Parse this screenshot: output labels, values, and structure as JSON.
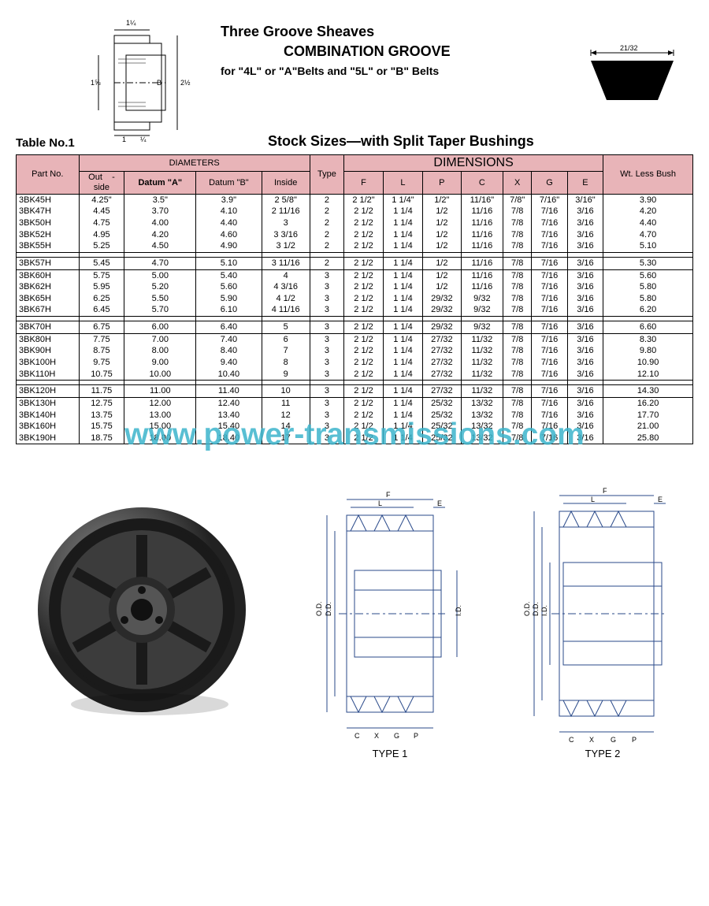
{
  "header": {
    "title1": "Three Groove Sheaves",
    "title2": "COMBINATION GROOVE",
    "title3": "for \"4L\" or \"A\"Belts and \"5L\" or \"B\" Belts",
    "belt_dim": "21/32",
    "top_dims": {
      "w": "1¼",
      "h": "1⅝",
      "b": "B",
      "r": "2½",
      "b1": "1",
      "b2": "¼"
    },
    "table_no": "Table No.1",
    "stock_title": "Stock Sizes—with Split Taper Bushings"
  },
  "table": {
    "header_groups": {
      "part": "Part No.",
      "diameters": "DIAMETERS",
      "type": "Type",
      "dimensions": "DIMENSIONS",
      "wt": "Wt. Less Bush"
    },
    "sub_headers": {
      "out": "Out    -\nside",
      "da": "Datum \"A\"",
      "db": "Datum \"B\"",
      "inside": "Inside",
      "f": "F",
      "l": "L",
      "p": "P",
      "c": "C",
      "x": "X",
      "g": "G",
      "e": "E"
    },
    "groups": [
      [
        [
          "3BK45H",
          "4.25\"",
          "3.5\"",
          "3.9\"",
          "2 5/8\"",
          "2",
          "2 1/2\"",
          "1 1/4\"",
          "1/2\"",
          "11/16\"",
          "7/8\"",
          "7/16\"",
          "3/16\"",
          "3.90"
        ],
        [
          "3BK47H",
          "4.45",
          "3.70",
          "4.10",
          "2 11/16",
          "2",
          "2 1/2",
          "1 1/4",
          "1/2",
          "11/16",
          "7/8",
          "7/16",
          "3/16",
          "4.20"
        ],
        [
          "3BK50H",
          "4.75",
          "4.00",
          "4.40",
          "3",
          "2",
          "2 1/2",
          "1 1/4",
          "1/2",
          "11/16",
          "7/8",
          "7/16",
          "3/16",
          "4.40"
        ],
        [
          "3BK52H",
          "4.95",
          "4.20",
          "4.60",
          "3 3/16",
          "2",
          "2 1/2",
          "1 1/4",
          "1/2",
          "11/16",
          "7/8",
          "7/16",
          "3/16",
          "4.70"
        ],
        [
          "3BK55H",
          "5.25",
          "4.50",
          "4.90",
          "3 1/2",
          "2",
          "2 1/2",
          "1 1/4",
          "1/2",
          "11/16",
          "7/8",
          "7/16",
          "3/16",
          "5.10"
        ]
      ],
      [
        [
          "3BK57H",
          "5.45",
          "4.70",
          "5.10",
          "3 11/16",
          "2",
          "2 1/2",
          "1 1/4",
          "1/2",
          "11/16",
          "7/8",
          "7/16",
          "3/16",
          "5.30"
        ],
        [
          "3BK60H",
          "5.75",
          "5.00",
          "5.40",
          "4",
          "3",
          "2 1/2",
          "1 1/4",
          "1/2",
          "11/16",
          "7/8",
          "7/16",
          "3/16",
          "5.60"
        ],
        [
          "3BK62H",
          "5.95",
          "5.20",
          "5.60",
          "4 3/16",
          "3",
          "2 1/2",
          "1 1/4",
          "1/2",
          "11/16",
          "7/8",
          "7/16",
          "3/16",
          "5.80"
        ],
        [
          "3BK65H",
          "6.25",
          "5.50",
          "5.90",
          "4 1/2",
          "3",
          "2 1/2",
          "1 1/4",
          "29/32",
          "9/32",
          "7/8",
          "7/16",
          "3/16",
          "5.80"
        ],
        [
          "3BK67H",
          "6.45",
          "5.70",
          "6.10",
          "4 11/16",
          "3",
          "2 1/2",
          "1 1/4",
          "29/32",
          "9/32",
          "7/8",
          "7/16",
          "3/16",
          "6.20"
        ]
      ],
      [
        [
          "3BK70H",
          "6.75",
          "6.00",
          "6.40",
          "5",
          "3",
          "2 1/2",
          "1 1/4",
          "29/32",
          "9/32",
          "7/8",
          "7/16",
          "3/16",
          "6.60"
        ],
        [
          "3BK80H",
          "7.75",
          "7.00",
          "7.40",
          "6",
          "3",
          "2 1/2",
          "1 1/4",
          "27/32",
          "11/32",
          "7/8",
          "7/16",
          "3/16",
          "8.30"
        ],
        [
          "3BK90H",
          "8.75",
          "8.00",
          "8.40",
          "7",
          "3",
          "2 1/2",
          "1 1/4",
          "27/32",
          "11/32",
          "7/8",
          "7/16",
          "3/16",
          "9.80"
        ],
        [
          "3BK100H",
          "9.75",
          "9.00",
          "9.40",
          "8",
          "3",
          "2 1/2",
          "1 1/4",
          "27/32",
          "11/32",
          "7/8",
          "7/16",
          "3/16",
          "10.90"
        ],
        [
          "3BK110H",
          "10.75",
          "10.00",
          "10.40",
          "9",
          "3",
          "2 1/2",
          "1 1/4",
          "27/32",
          "11/32",
          "7/8",
          "7/16",
          "3/16",
          "12.10"
        ]
      ],
      [
        [
          "3BK120H",
          "11.75",
          "11.00",
          "11.40",
          "10",
          "3",
          "2 1/2",
          "1 1/4",
          "27/32",
          "11/32",
          "7/8",
          "7/16",
          "3/16",
          "14.30"
        ],
        [
          "3BK130H",
          "12.75",
          "12.00",
          "12.40",
          "11",
          "3",
          "2 1/2",
          "1 1/4",
          "25/32",
          "13/32",
          "7/8",
          "7/16",
          "3/16",
          "16.20"
        ],
        [
          "3BK140H",
          "13.75",
          "13.00",
          "13.40",
          "12",
          "3",
          "2 1/2",
          "1 1/4",
          "25/32",
          "13/32",
          "7/8",
          "7/16",
          "3/16",
          "17.70"
        ],
        [
          "3BK160H",
          "15.75",
          "15.00",
          "15.40",
          "14",
          "3",
          "2 1/2",
          "1 1/4",
          "25/32",
          "13/32",
          "7/8",
          "7/16",
          "3/16",
          "21.00"
        ],
        [
          "3BK190H",
          "18.75",
          "18.00",
          "18.40",
          "17",
          "3",
          "2 1/2",
          "1 1/4",
          "25/32",
          "13/32",
          "7/8",
          "7/16",
          "3/16",
          "25.80"
        ]
      ]
    ]
  },
  "watermark": "www.power-transmissions.com",
  "bottom": {
    "type1": "TYPE 1",
    "type2": "TYPE 2",
    "dims": [
      "F",
      "L",
      "E",
      "C",
      "X",
      "G",
      "P",
      "O.D.",
      "D.D.",
      "I.D."
    ]
  },
  "colors": {
    "header_bg": "#e8b4b8",
    "watermark": "#3db5cc",
    "line": "#000000",
    "drawing": "#2a4a8a"
  }
}
